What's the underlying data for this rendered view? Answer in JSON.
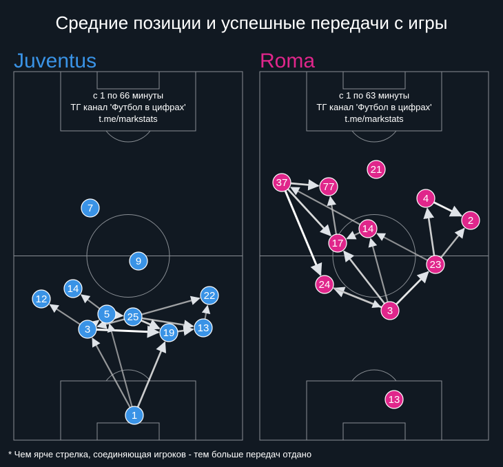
{
  "title": "Средние позиции и успешные передачи с игры",
  "footnote": "* Чем ярче стрелка, соединяющая игроков - тем больше передач отдано",
  "colors": {
    "background": "#111922",
    "pitch_line": "#8a8f95",
    "arrow": "#ffffff"
  },
  "teams": [
    {
      "name": "Juventus",
      "color": "#3a93e6",
      "info": [
        "с 1 по 66 минуты",
        "ТГ канал 'Футбол в цифрах'",
        "t.me/markstats"
      ],
      "players": [
        {
          "number": "7"
        },
        {
          "number": "9"
        },
        {
          "number": "12"
        },
        {
          "number": "14"
        },
        {
          "number": "22"
        },
        {
          "number": "5"
        },
        {
          "number": "25"
        },
        {
          "number": "3"
        },
        {
          "number": "19"
        },
        {
          "number": "13"
        },
        {
          "number": "1"
        }
      ]
    },
    {
      "name": "Roma",
      "color": "#e0268b",
      "info": [
        "с 1 по 63 минуты",
        "ТГ канал 'Футбол в цифрах'",
        "t.me/markstats"
      ],
      "players": [
        {
          "number": "21"
        },
        {
          "number": "37"
        },
        {
          "number": "77"
        },
        {
          "number": "4"
        },
        {
          "number": "2"
        },
        {
          "number": "14"
        },
        {
          "number": "17"
        },
        {
          "number": "23"
        },
        {
          "number": "24"
        },
        {
          "number": "3"
        },
        {
          "number": "13"
        }
      ]
    }
  ]
}
